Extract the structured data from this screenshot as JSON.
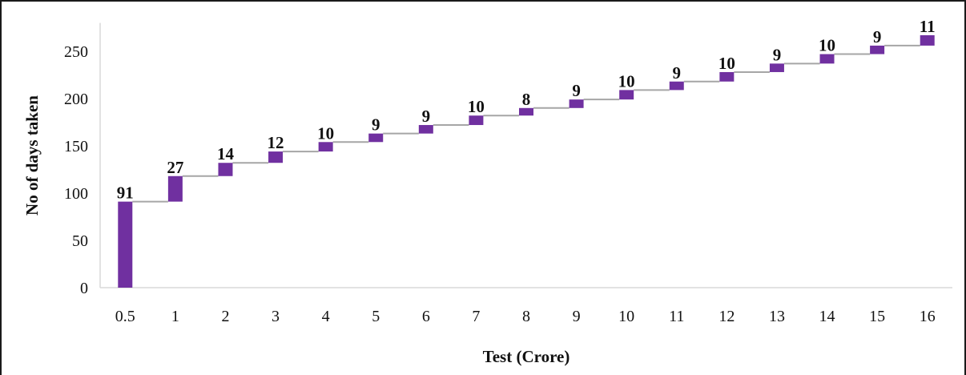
{
  "chart_data": {
    "type": "waterfall",
    "title": "",
    "xlabel": "Test (Crore)",
    "ylabel": "No of days taken",
    "categories": [
      "0.5",
      "1",
      "2",
      "3",
      "4",
      "5",
      "6",
      "7",
      "8",
      "9",
      "10",
      "11",
      "12",
      "13",
      "14",
      "15",
      "16"
    ],
    "values": [
      91,
      27,
      14,
      12,
      10,
      9,
      9,
      10,
      8,
      9,
      10,
      9,
      10,
      9,
      10,
      9,
      11
    ],
    "cumulative_start": [
      0,
      91,
      118,
      132,
      144,
      154,
      163,
      172,
      182,
      190,
      199,
      209,
      218,
      228,
      237,
      247,
      256
    ],
    "ylim": [
      0,
      280
    ],
    "yticks": [
      0,
      50,
      100,
      150,
      200,
      250
    ],
    "grid": false,
    "legend": "none",
    "bar_color": "#7030a0",
    "connector_color": "#a6a6a6",
    "axis_color": "#d9d9d9"
  }
}
